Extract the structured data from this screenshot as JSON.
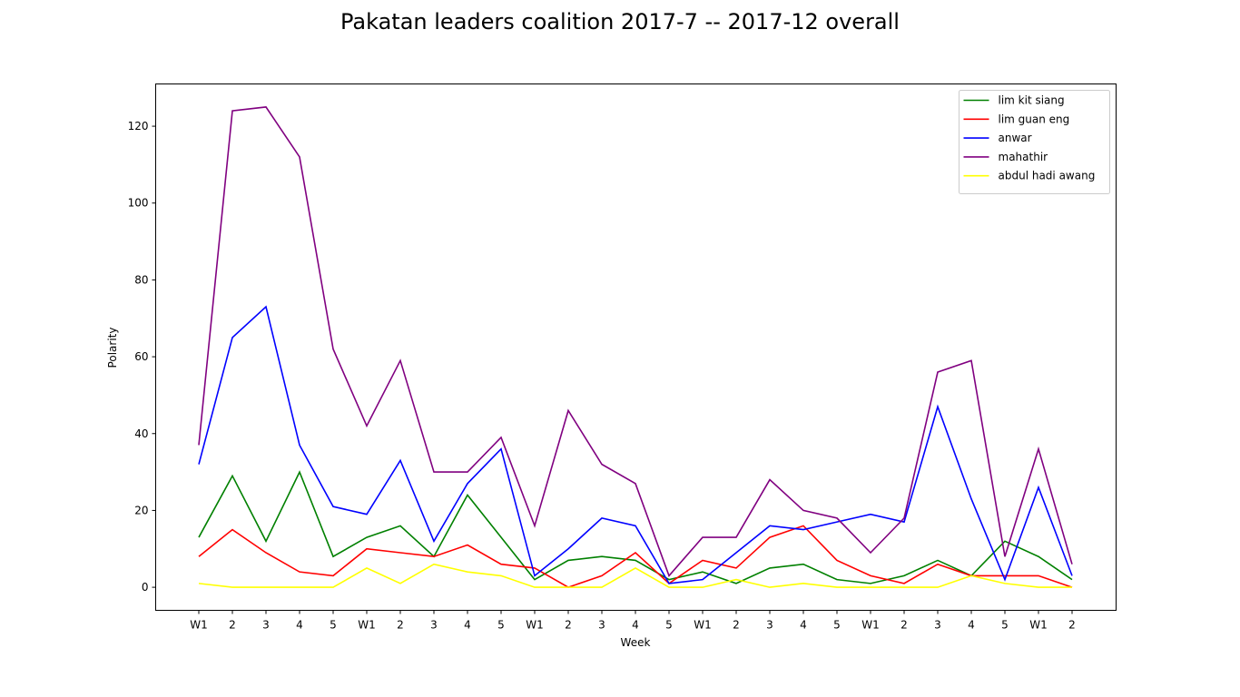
{
  "chart_data": {
    "type": "line",
    "title": "Pakatan leaders coalition 2017-7 -- 2017-12 overall",
    "xlabel": "Week",
    "ylabel": "Polarity",
    "categories": [
      "W1",
      "2",
      "3",
      "4",
      "5",
      "W1",
      "2",
      "3",
      "4",
      "5",
      "W1",
      "2",
      "3",
      "4",
      "5",
      "W1",
      "2",
      "3",
      "4",
      "5",
      "W1",
      "2",
      "3",
      "4",
      "5",
      "W1",
      "2"
    ],
    "ylim": [
      -6,
      131
    ],
    "yticks": [
      0,
      20,
      40,
      60,
      80,
      100,
      120
    ],
    "grid": false,
    "legend_position": "top-right",
    "series": [
      {
        "name": "lim kit siang",
        "color": "#008000",
        "values": [
          13,
          29,
          12,
          30,
          8,
          13,
          16,
          8,
          24,
          13,
          2,
          7,
          8,
          7,
          2,
          4,
          1,
          5,
          6,
          2,
          1,
          3,
          7,
          3,
          12,
          8,
          2
        ]
      },
      {
        "name": "lim guan eng",
        "color": "#ff0000",
        "values": [
          8,
          15,
          9,
          4,
          3,
          10,
          9,
          8,
          11,
          6,
          5,
          0,
          3,
          9,
          1,
          7,
          5,
          13,
          16,
          7,
          3,
          1,
          6,
          3,
          3,
          3,
          0
        ]
      },
      {
        "name": "anwar",
        "color": "#0000ff",
        "values": [
          32,
          65,
          73,
          37,
          21,
          19,
          33,
          12,
          27,
          36,
          3,
          10,
          18,
          16,
          1,
          2,
          9,
          16,
          15,
          17,
          19,
          17,
          47,
          23,
          2,
          26,
          3
        ]
      },
      {
        "name": "mahathir",
        "color": "#800080",
        "values": [
          37,
          124,
          125,
          112,
          62,
          42,
          59,
          30,
          30,
          39,
          16,
          46,
          32,
          27,
          3,
          13,
          13,
          28,
          20,
          18,
          9,
          18,
          56,
          59,
          8,
          36,
          6
        ]
      },
      {
        "name": "abdul hadi awang",
        "color": "#ffff00",
        "values": [
          1,
          0,
          0,
          0,
          0,
          5,
          1,
          6,
          4,
          3,
          0,
          0,
          0,
          5,
          0,
          0,
          2,
          0,
          1,
          0,
          0,
          0,
          0,
          3,
          1,
          0,
          0
        ]
      }
    ]
  }
}
